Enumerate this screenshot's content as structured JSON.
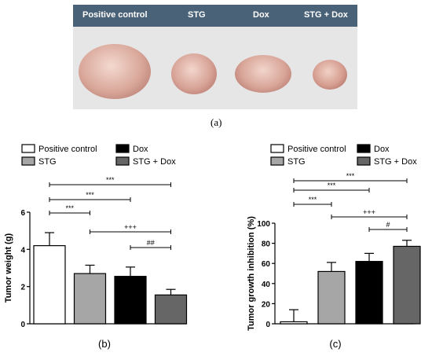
{
  "photo_panel": {
    "headers": [
      "Positive control",
      "STG",
      "Dox",
      "STG + Dox"
    ],
    "caption": "(a)"
  },
  "chart_data": [
    {
      "type": "bar",
      "caption": "(b)",
      "categories": [
        "Positive control",
        "STG",
        "Dox",
        "STG + Dox"
      ],
      "values": [
        4.2,
        2.7,
        2.55,
        1.55
      ],
      "errors": [
        0.7,
        0.45,
        0.5,
        0.3
      ],
      "colors": [
        "#ffffff",
        "#a6a6a6",
        "#000000",
        "#666666"
      ],
      "ylabel": "Tumor weight (g)",
      "ylim": [
        0,
        6
      ],
      "yticks": [
        0,
        2,
        4,
        6
      ],
      "legend": [
        {
          "label": "Positive control",
          "color": "#ffffff"
        },
        {
          "label": "Dox",
          "color": "#000000"
        },
        {
          "label": "STG",
          "color": "#a6a6a6"
        },
        {
          "label": "STG + Dox",
          "color": "#666666"
        }
      ],
      "significance": [
        {
          "from": 0,
          "to": 3,
          "label": "***"
        },
        {
          "from": 0,
          "to": 2,
          "label": "***"
        },
        {
          "from": 0,
          "to": 1,
          "label": "***"
        },
        {
          "from": 1,
          "to": 3,
          "label": "+++"
        },
        {
          "from": 2,
          "to": 3,
          "label": "##"
        }
      ]
    },
    {
      "type": "bar",
      "caption": "(c)",
      "categories": [
        "Positive control",
        "STG",
        "Dox",
        "STG + Dox"
      ],
      "values": [
        2,
        52,
        62,
        77
      ],
      "errors": [
        12,
        9,
        8,
        6
      ],
      "colors": [
        "#ffffff",
        "#a6a6a6",
        "#000000",
        "#666666"
      ],
      "ylabel": "Tumor growth inhibition (%)",
      "ylim": [
        0,
        100
      ],
      "yticks": [
        0,
        20,
        40,
        60,
        80,
        100
      ],
      "legend": [
        {
          "label": "Positive control",
          "color": "#ffffff"
        },
        {
          "label": "Dox",
          "color": "#000000"
        },
        {
          "label": "STG",
          "color": "#a6a6a6"
        },
        {
          "label": "STG + Dox",
          "color": "#666666"
        }
      ],
      "significance": [
        {
          "from": 0,
          "to": 3,
          "label": "***"
        },
        {
          "from": 0,
          "to": 2,
          "label": "***"
        },
        {
          "from": 0,
          "to": 1,
          "label": "***"
        },
        {
          "from": 1,
          "to": 3,
          "label": "+++"
        },
        {
          "from": 2,
          "to": 3,
          "label": "#"
        }
      ]
    }
  ]
}
